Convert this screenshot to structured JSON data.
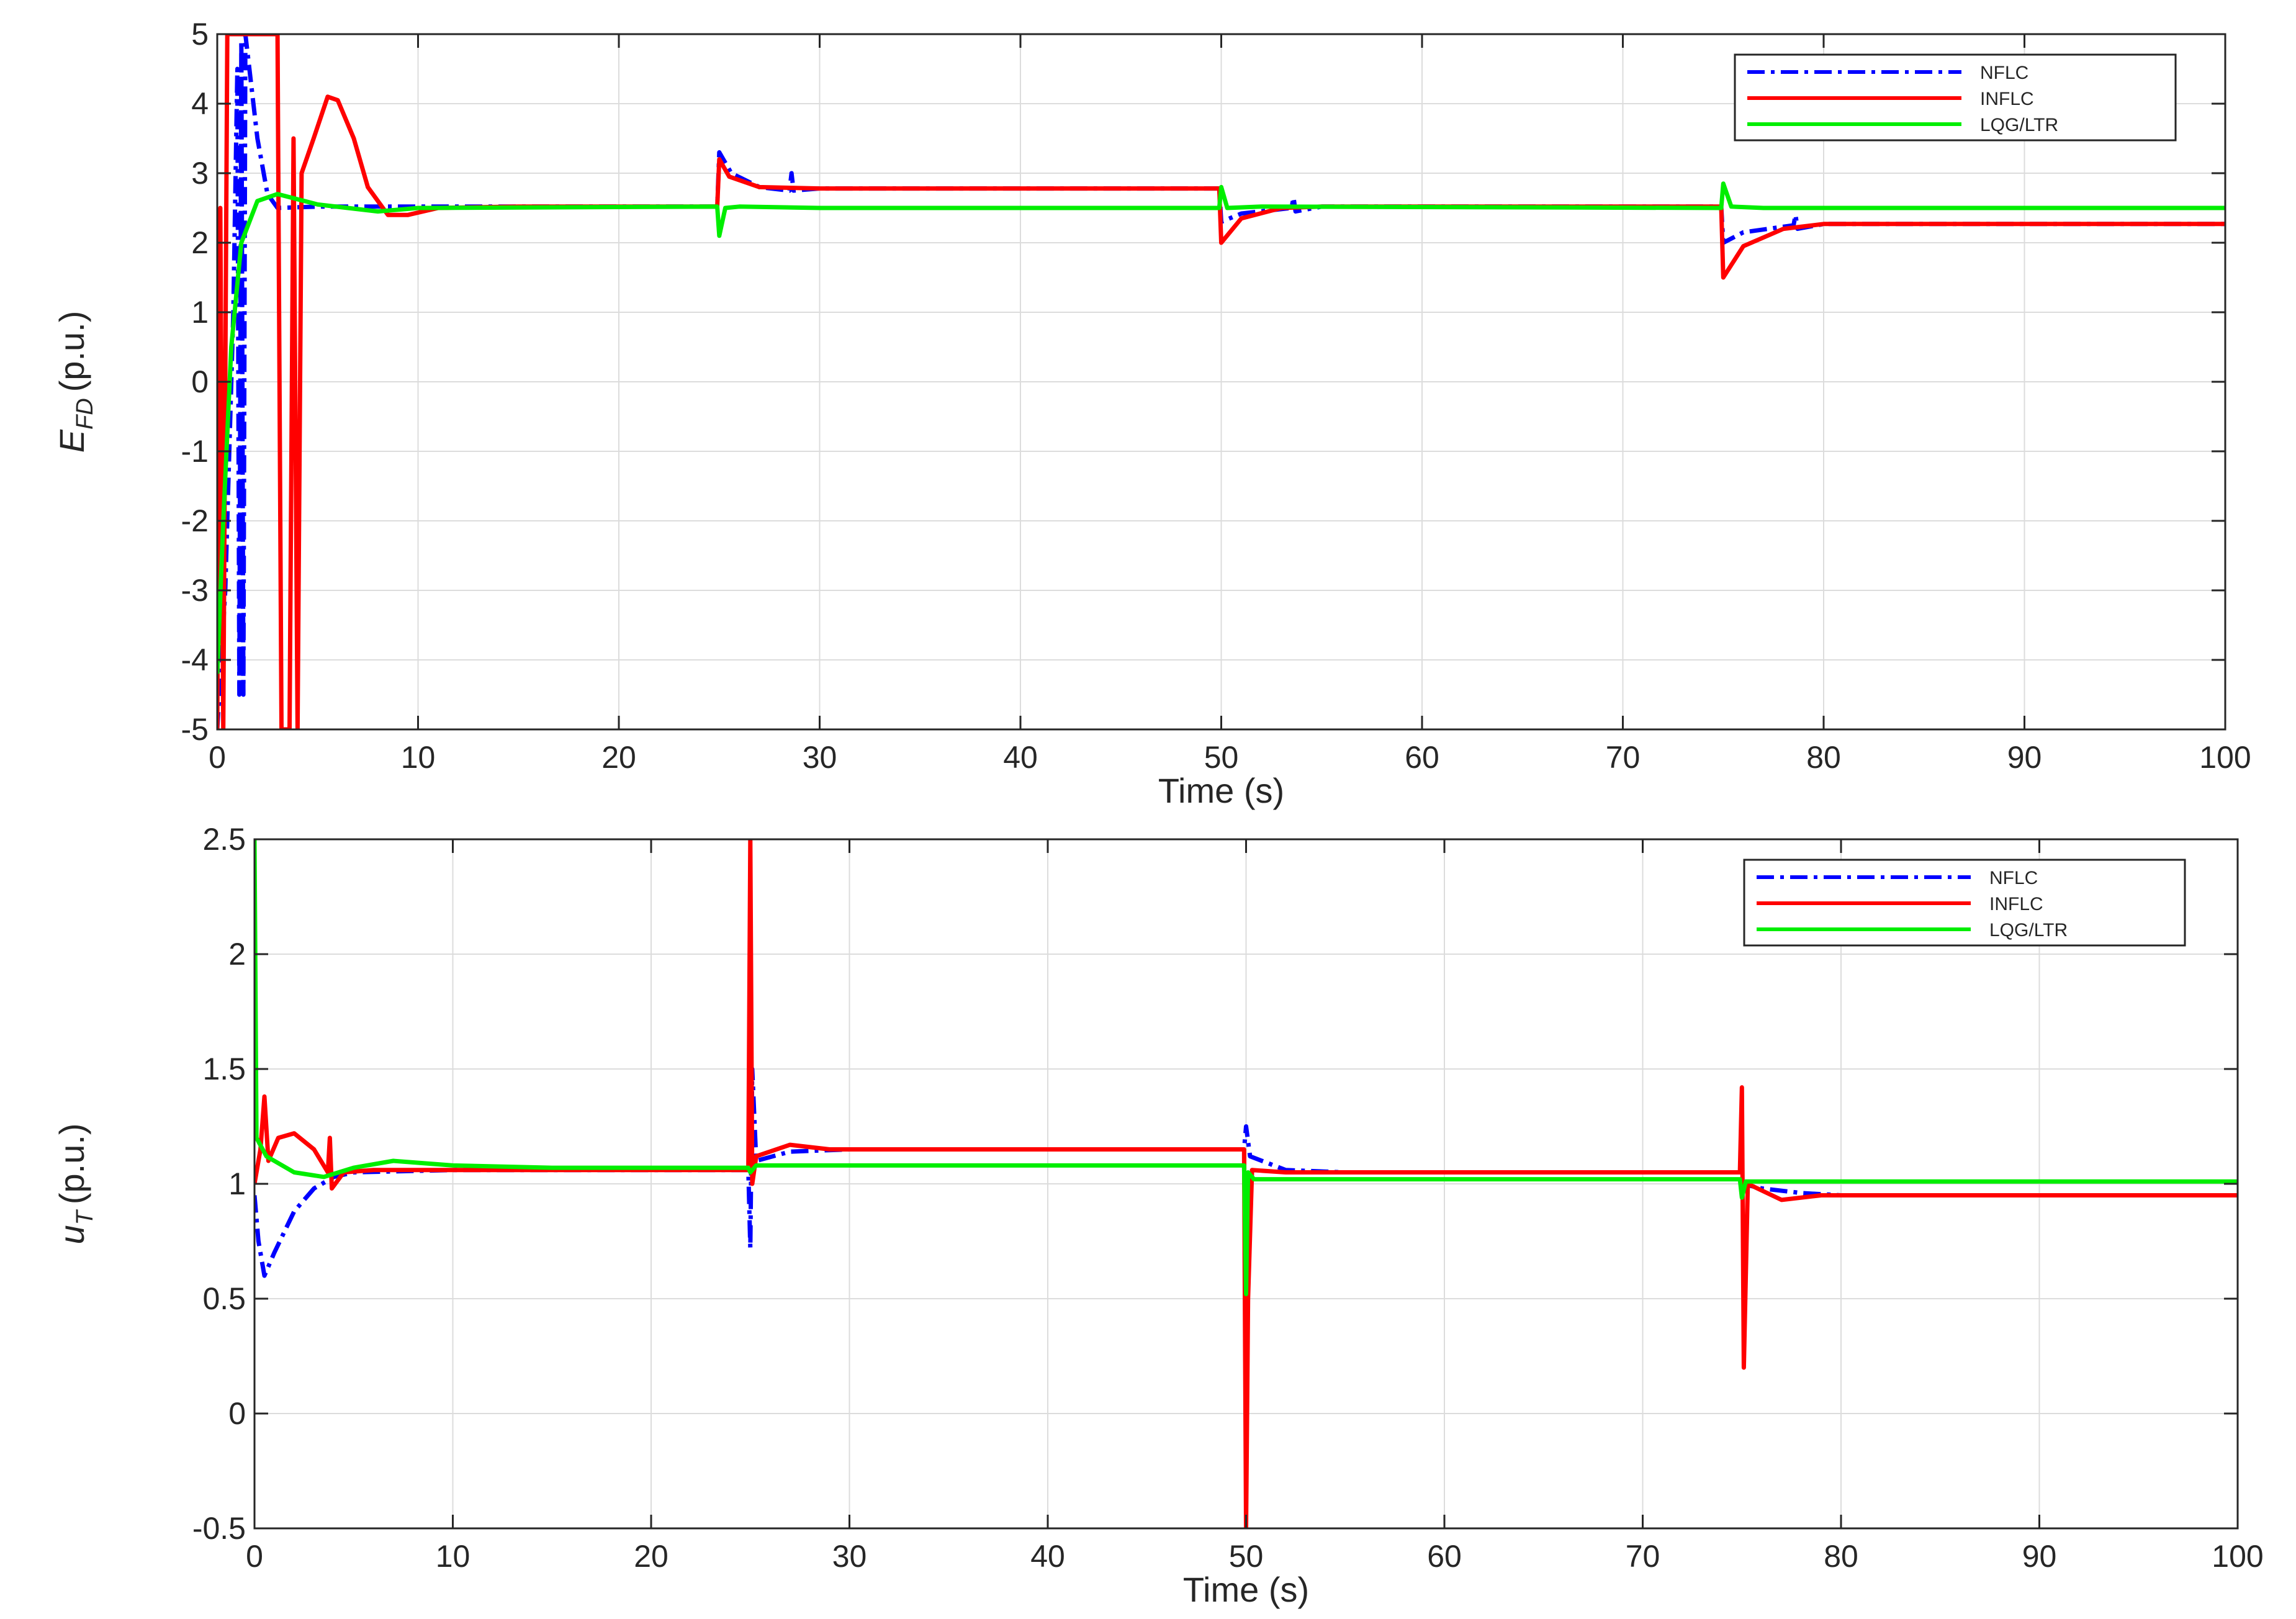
{
  "chart_data": [
    {
      "type": "line",
      "ylabel": "E",
      "ylabel_subscript": "FD",
      "ylabel_unit": "(p.u.)",
      "xlabel": "Time (s)",
      "xlim": [
        0,
        100
      ],
      "ylim": [
        -5,
        5
      ],
      "x_ticks": [
        0,
        10,
        20,
        30,
        40,
        50,
        60,
        70,
        80,
        90,
        100
      ],
      "x_tick_labels": [
        "0",
        "10",
        "20",
        "30",
        "40",
        "50",
        "60",
        "70",
        "80",
        "90",
        "100"
      ],
      "y_ticks": [
        -5,
        -4,
        -3,
        -2,
        -1,
        0,
        1,
        2,
        3,
        4,
        5
      ],
      "y_tick_labels": [
        "-5",
        "-4",
        "-3",
        "-2",
        "-1",
        "0",
        "1",
        "2",
        "3",
        "4",
        "5"
      ],
      "grid": true,
      "legend_position": "top-right",
      "series": [
        {
          "name": "NFLC",
          "color": "#0000ff",
          "style": "dashdot",
          "points": [
            [
              0,
              -5
            ],
            [
              0.4,
              -3.0
            ],
            [
              0.8,
              1.0
            ],
            [
              1.0,
              4.5
            ],
            [
              1.1,
              -4.5
            ],
            [
              1.2,
              4.9
            ],
            [
              1.3,
              -4.5
            ],
            [
              1.4,
              5.0
            ],
            [
              1.6,
              4.5
            ],
            [
              2.0,
              3.5
            ],
            [
              2.5,
              2.7
            ],
            [
              3.0,
              2.5
            ],
            [
              5,
              2.52
            ],
            [
              10,
              2.52
            ],
            [
              24.9,
              2.52
            ],
            [
              25.0,
              3.3
            ],
            [
              25.6,
              3.0
            ],
            [
              27,
              2.8
            ],
            [
              28.5,
              2.75
            ],
            [
              28.6,
              3.0
            ],
            [
              28.7,
              2.75
            ],
            [
              30,
              2.78
            ],
            [
              49.9,
              2.78
            ],
            [
              50.0,
              2.3
            ],
            [
              51,
              2.42
            ],
            [
              53.5,
              2.5
            ],
            [
              53.6,
              2.65
            ],
            [
              53.7,
              2.45
            ],
            [
              55,
              2.52
            ],
            [
              74.9,
              2.52
            ],
            [
              75.0,
              2.0
            ],
            [
              76,
              2.15
            ],
            [
              78.5,
              2.25
            ],
            [
              78.6,
              2.4
            ],
            [
              78.7,
              2.2
            ],
            [
              80,
              2.27
            ],
            [
              100,
              2.27
            ]
          ]
        },
        {
          "name": "INFLC",
          "color": "#ff0000",
          "style": "solid",
          "points": [
            [
              0,
              -5
            ],
            [
              0.15,
              2.5
            ],
            [
              0.3,
              -5
            ],
            [
              0.5,
              5
            ],
            [
              3.0,
              5
            ],
            [
              3.2,
              -5
            ],
            [
              3.6,
              -5
            ],
            [
              3.8,
              3.5
            ],
            [
              4.0,
              -5
            ],
            [
              4.2,
              3.0
            ],
            [
              4.8,
              3.5
            ],
            [
              5.5,
              4.1
            ],
            [
              6.0,
              4.05
            ],
            [
              6.8,
              3.5
            ],
            [
              7.5,
              2.8
            ],
            [
              8.5,
              2.4
            ],
            [
              9.5,
              2.4
            ],
            [
              11,
              2.5
            ],
            [
              15,
              2.52
            ],
            [
              24.9,
              2.52
            ],
            [
              25.0,
              3.2
            ],
            [
              25.5,
              2.95
            ],
            [
              27,
              2.8
            ],
            [
              30,
              2.78
            ],
            [
              49.9,
              2.78
            ],
            [
              50.0,
              2.0
            ],
            [
              51,
              2.35
            ],
            [
              53,
              2.5
            ],
            [
              55,
              2.52
            ],
            [
              74.9,
              2.52
            ],
            [
              75.0,
              1.5
            ],
            [
              76,
              1.95
            ],
            [
              78,
              2.2
            ],
            [
              80,
              2.27
            ],
            [
              100,
              2.27
            ]
          ]
        },
        {
          "name": "LQG/LTR",
          "color": "#00ee00",
          "style": "solid",
          "points": [
            [
              0,
              -4.2
            ],
            [
              0.3,
              -2.0
            ],
            [
              0.7,
              0.5
            ],
            [
              1.2,
              2.0
            ],
            [
              2.0,
              2.6
            ],
            [
              3.0,
              2.7
            ],
            [
              5,
              2.55
            ],
            [
              8,
              2.45
            ],
            [
              10,
              2.5
            ],
            [
              24.9,
              2.52
            ],
            [
              25.0,
              2.1
            ],
            [
              25.3,
              2.5
            ],
            [
              26,
              2.52
            ],
            [
              30,
              2.5
            ],
            [
              49.9,
              2.5
            ],
            [
              50.0,
              2.8
            ],
            [
              50.3,
              2.5
            ],
            [
              52,
              2.52
            ],
            [
              74.9,
              2.5
            ],
            [
              75.0,
              2.85
            ],
            [
              75.4,
              2.52
            ],
            [
              77,
              2.5
            ],
            [
              100,
              2.5
            ]
          ]
        }
      ]
    },
    {
      "type": "line",
      "ylabel": "u",
      "ylabel_subscript": "T",
      "ylabel_unit": "(p.u.)",
      "xlabel": "Time (s)",
      "xlim": [
        0,
        100
      ],
      "ylim": [
        -0.5,
        2.5
      ],
      "x_ticks": [
        0,
        10,
        20,
        30,
        40,
        50,
        60,
        70,
        80,
        90,
        100
      ],
      "x_tick_labels": [
        "0",
        "10",
        "20",
        "30",
        "40",
        "50",
        "60",
        "70",
        "80",
        "90",
        "100"
      ],
      "y_ticks": [
        -0.5,
        0,
        0.5,
        1,
        1.5,
        2,
        2.5
      ],
      "y_tick_labels": [
        "-0.5",
        "0",
        "0.5",
        "1",
        "1.5",
        "2",
        "2.5"
      ],
      "grid": true,
      "legend_position": "top-right",
      "series": [
        {
          "name": "NFLC",
          "color": "#0000ff",
          "style": "dashdot",
          "points": [
            [
              0,
              0.95
            ],
            [
              0.2,
              0.75
            ],
            [
              0.5,
              0.6
            ],
            [
              1.0,
              0.7
            ],
            [
              2.0,
              0.88
            ],
            [
              3.0,
              0.98
            ],
            [
              4.0,
              1.03
            ],
            [
              5,
              1.05
            ],
            [
              10,
              1.06
            ],
            [
              24.9,
              1.06
            ],
            [
              25.0,
              0.72
            ],
            [
              25.1,
              1.5
            ],
            [
              25.3,
              1.1
            ],
            [
              27,
              1.14
            ],
            [
              30,
              1.15
            ],
            [
              49.9,
              1.15
            ],
            [
              50.0,
              1.25
            ],
            [
              50.2,
              1.12
            ],
            [
              52,
              1.06
            ],
            [
              55,
              1.05
            ],
            [
              74.9,
              1.05
            ],
            [
              75.0,
              1.0
            ],
            [
              76,
              0.98
            ],
            [
              78,
              0.96
            ],
            [
              80,
              0.95
            ],
            [
              100,
              0.95
            ]
          ]
        },
        {
          "name": "INFLC",
          "color": "#ff0000",
          "style": "solid",
          "points": [
            [
              0,
              1.0
            ],
            [
              0.3,
              1.15
            ],
            [
              0.5,
              1.38
            ],
            [
              0.7,
              1.1
            ],
            [
              1.2,
              1.2
            ],
            [
              2.0,
              1.22
            ],
            [
              3.0,
              1.15
            ],
            [
              3.7,
              1.05
            ],
            [
              3.8,
              1.2
            ],
            [
              3.9,
              0.98
            ],
            [
              4.5,
              1.05
            ],
            [
              6,
              1.06
            ],
            [
              10,
              1.06
            ],
            [
              24.9,
              1.06
            ],
            [
              25.0,
              2.5
            ],
            [
              25.1,
              1.0
            ],
            [
              25.3,
              1.12
            ],
            [
              27,
              1.17
            ],
            [
              29,
              1.15
            ],
            [
              49.9,
              1.15
            ],
            [
              50.0,
              -0.5
            ],
            [
              50.1,
              0.5
            ],
            [
              50.3,
              1.06
            ],
            [
              52,
              1.05
            ],
            [
              74.9,
              1.05
            ],
            [
              75.0,
              1.42
            ],
            [
              75.1,
              0.2
            ],
            [
              75.3,
              1.0
            ],
            [
              77,
              0.93
            ],
            [
              79,
              0.95
            ],
            [
              100,
              0.95
            ]
          ]
        },
        {
          "name": "LQG/LTR",
          "color": "#00ee00",
          "style": "solid",
          "points": [
            [
              0,
              2.5
            ],
            [
              0.1,
              1.2
            ],
            [
              0.6,
              1.12
            ],
            [
              2.0,
              1.05
            ],
            [
              3.5,
              1.03
            ],
            [
              5,
              1.07
            ],
            [
              7,
              1.1
            ],
            [
              10,
              1.08
            ],
            [
              15,
              1.07
            ],
            [
              24.9,
              1.07
            ],
            [
              25.0,
              1.05
            ],
            [
              25.3,
              1.08
            ],
            [
              30,
              1.08
            ],
            [
              49.9,
              1.08
            ],
            [
              50.0,
              0.52
            ],
            [
              50.1,
              1.05
            ],
            [
              50.4,
              1.02
            ],
            [
              55,
              1.02
            ],
            [
              74.9,
              1.02
            ],
            [
              75.0,
              0.94
            ],
            [
              75.2,
              1.01
            ],
            [
              77,
              1.01
            ],
            [
              100,
              1.01
            ]
          ]
        }
      ]
    }
  ]
}
